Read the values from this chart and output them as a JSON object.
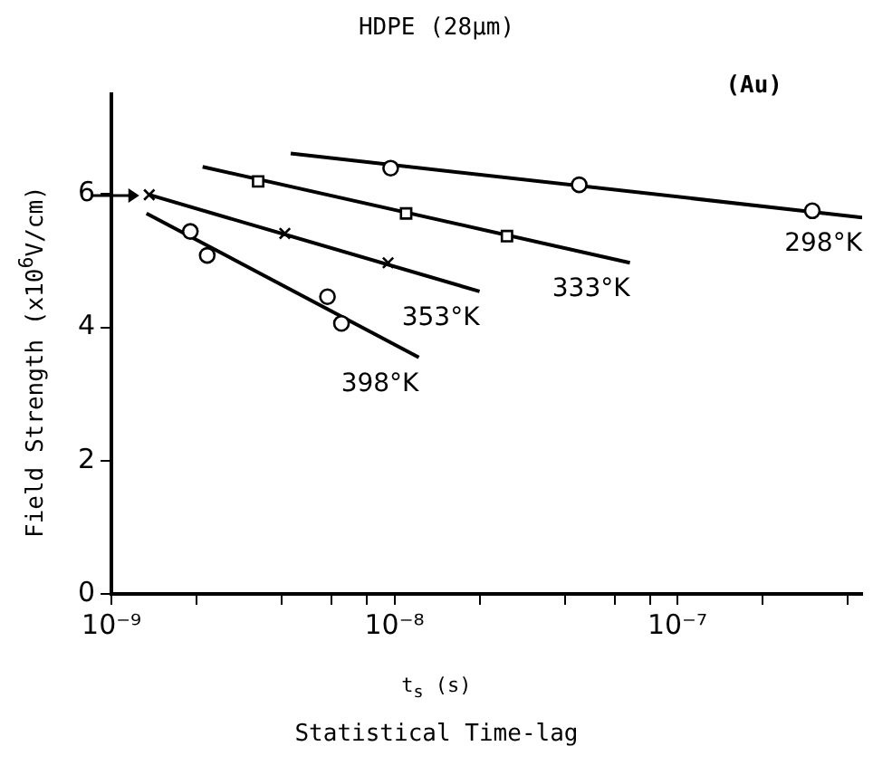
{
  "chart_data": {
    "type": "scatter",
    "title": "HDPE (28μm)",
    "xlabel": "t$_{s}$ (s)",
    "ylabel": "Field Strength (x10$^{6}$V/cm)",
    "annotations": [
      "(Au)",
      "Statistical Time-lag"
    ],
    "log": "x",
    "grid": false,
    "legend": false,
    "xlim": [
      1e-09,
      4.5e-07
    ],
    "ylim": [
      0,
      7.5
    ],
    "xticks": [
      {
        "value": 1e-09,
        "label": "10⁻⁹"
      },
      {
        "value": 2e-09,
        "label": null
      },
      {
        "value": 4e-09,
        "label": null
      },
      {
        "value": 6e-09,
        "label": null
      },
      {
        "value": 8e-09,
        "label": null
      },
      {
        "value": 1e-08,
        "label": "10⁻⁸"
      },
      {
        "value": 2e-08,
        "label": null
      },
      {
        "value": 4e-08,
        "label": null
      },
      {
        "value": 6e-08,
        "label": null
      },
      {
        "value": 8e-08,
        "label": null
      },
      {
        "value": 1e-07,
        "label": "10⁻⁷"
      },
      {
        "value": 2e-07,
        "label": null
      },
      {
        "value": 4e-07,
        "label": null
      }
    ],
    "yticks": [
      0,
      2,
      4,
      6
    ],
    "series": [
      {
        "type": "scatter",
        "marker": "circle",
        "color": "#000000",
        "x": [
          9.7e-09,
          4.5e-08,
          3e-07
        ],
        "values": [
          6.39,
          6.14,
          5.75
        ]
      },
      {
        "type": "scatter",
        "marker": "square",
        "color": "#000000",
        "x": [
          3.3e-09,
          1.1e-08,
          2.5e-08
        ],
        "values": [
          6.19,
          5.71,
          5.37
        ]
      },
      {
        "type": "scatter",
        "marker": "cross",
        "color": "#000000",
        "x": [
          1.36e-09,
          4.1e-09,
          9.5e-09
        ],
        "values": [
          5.99,
          5.41,
          4.97
        ]
      },
      {
        "type": "scatter",
        "marker": "circle",
        "color": "#000000",
        "x": [
          1.9e-09,
          2.18e-09,
          5.8e-09,
          6.5e-09
        ],
        "values": [
          5.44,
          5.08,
          4.46,
          4.06
        ]
      },
      {
        "type": "line",
        "name": "298°K",
        "marker": "none",
        "color": "#000000",
        "x": [
          4.3e-09,
          4.5e-07
        ],
        "values": [
          6.61,
          5.65
        ]
      },
      {
        "type": "line",
        "name": "333°K",
        "marker": "none",
        "color": "#000000",
        "x": [
          2.1e-09,
          6.8e-08
        ],
        "values": [
          6.41,
          4.97
        ]
      },
      {
        "type": "line",
        "name": "353°K",
        "marker": "none",
        "color": "#000000",
        "x": [
          1.36e-09,
          2e-08
        ],
        "values": [
          5.99,
          4.54
        ]
      },
      {
        "type": "line",
        "name": "398°K",
        "marker": "none",
        "color": "#000000",
        "x": [
          1.33e-09,
          1.22e-08
        ],
        "values": [
          5.71,
          3.55
        ]
      }
    ]
  }
}
